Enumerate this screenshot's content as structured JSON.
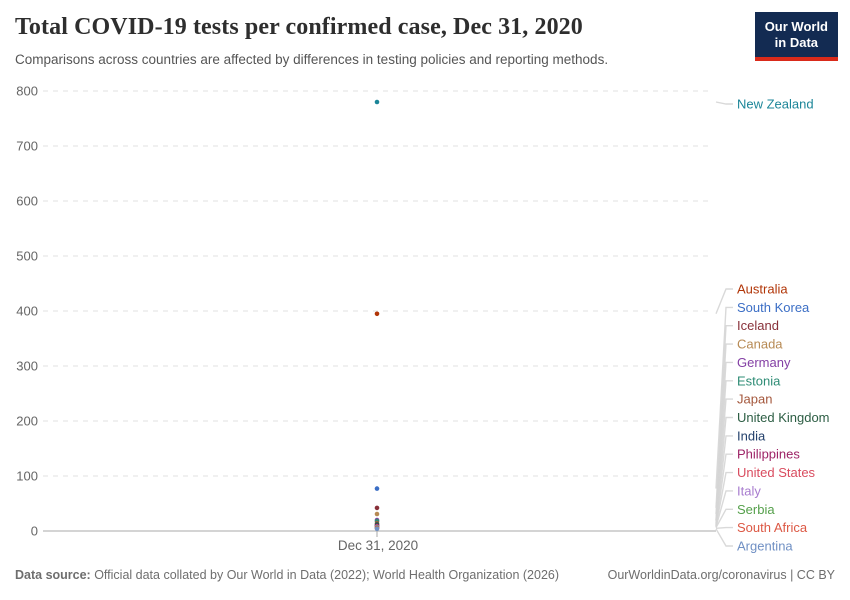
{
  "header": {
    "title": "Total COVID-19 tests per confirmed case, Dec 31, 2020",
    "subtitle": "Comparisons across countries are affected by differences in testing policies and reporting methods."
  },
  "logo": {
    "line1": "Our World",
    "line2": "in Data",
    "bg_color": "#132B52",
    "accent_color": "#D92A1A"
  },
  "chart_data": {
    "type": "scatter",
    "title": "Total COVID-19 tests per confirmed case, Dec 31, 2020",
    "x_tick_label": "Dec 31, 2020",
    "ylabel": "",
    "ylim": [
      0,
      800
    ],
    "yticks": [
      0,
      100,
      200,
      300,
      400,
      500,
      600,
      700,
      800
    ],
    "grid": true,
    "legend_position": "right",
    "points": [
      {
        "name": "New Zealand",
        "value": 780,
        "color": "#1B8598"
      },
      {
        "name": "Australia",
        "value": 395,
        "color": "#B13507"
      },
      {
        "name": "South Korea",
        "value": 77,
        "color": "#3B6EC5"
      },
      {
        "name": "Iceland",
        "value": 42,
        "color": "#883039"
      },
      {
        "name": "Canada",
        "value": 31,
        "color": "#B78A54"
      },
      {
        "name": "Germany",
        "value": 20,
        "color": "#8440A5"
      },
      {
        "name": "Estonia",
        "value": 18,
        "color": "#2E8C75"
      },
      {
        "name": "Japan",
        "value": 14,
        "color": "#A4573C"
      },
      {
        "name": "United Kingdom",
        "value": 12,
        "color": "#2D5E44"
      },
      {
        "name": "India",
        "value": 10,
        "color": "#23406B"
      },
      {
        "name": "Philippines",
        "value": 9,
        "color": "#9D2366"
      },
      {
        "name": "United States",
        "value": 8,
        "color": "#D94C5F"
      },
      {
        "name": "Italy",
        "value": 7,
        "color": "#A87CCF"
      },
      {
        "name": "Serbia",
        "value": 6,
        "color": "#55A04B"
      },
      {
        "name": "South Africa",
        "value": 5,
        "color": "#DC5844"
      },
      {
        "name": "Argentina",
        "value": 4,
        "color": "#7090C4"
      }
    ]
  },
  "footer": {
    "source_label": "Data source:",
    "source_text": " Official data collated by Our World in Data (2022); World Health Organization (2026)",
    "link": "OurWorldinData.org/coronavirus | CC BY"
  }
}
